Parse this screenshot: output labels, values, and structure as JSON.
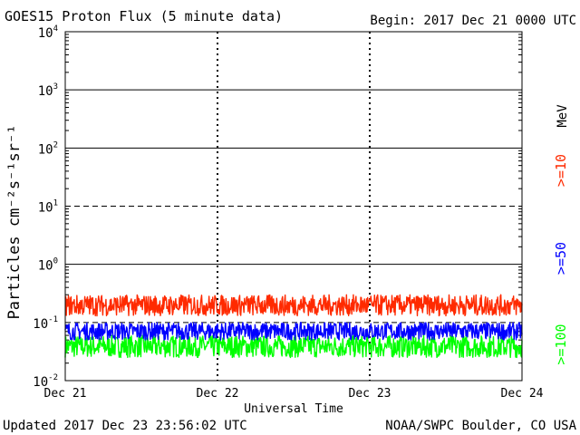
{
  "chart_data": {
    "type": "line",
    "title": "GOES15 Proton Flux (5 minute data)",
    "begin_label": "Begin: 2017 Dec 21 0000 UTC",
    "xlabel": "Universal Time",
    "ylabel": "Particles cm⁻²s⁻¹sr⁻¹",
    "yscale": "log",
    "ylim": [
      0.01,
      10000
    ],
    "yticks": [
      {
        "base": "10",
        "exp": "4"
      },
      {
        "base": "10",
        "exp": "3"
      },
      {
        "base": "10",
        "exp": "2"
      },
      {
        "base": "10",
        "exp": "1"
      },
      {
        "base": "10",
        "exp": "0"
      },
      {
        "base": "10",
        "exp": "-1"
      },
      {
        "base": "10",
        "exp": "-2"
      }
    ],
    "xticks": [
      "Dec 21",
      "Dec 22",
      "Dec 23",
      "Dec 24"
    ],
    "xlim": [
      "2017-12-21 00:00",
      "2017-12-24 00:00"
    ],
    "energy_unit": "MeV",
    "series": [
      {
        "name": ">=10",
        "color": "#ff2a00",
        "typical_range": [
          0.13,
          0.3
        ]
      },
      {
        "name": ">=50",
        "color": "#0000ff",
        "typical_range": [
          0.05,
          0.1
        ]
      },
      {
        "name": ">=100",
        "color": "#00ff00",
        "typical_range": [
          0.025,
          0.06
        ]
      }
    ]
  },
  "footer": {
    "updated": "Updated 2017 Dec 23 23:56:02 UTC",
    "credit": "NOAA/SWPC Boulder, CO USA"
  },
  "colors": {
    "grid": "#000000",
    "background": "#ffffff"
  }
}
